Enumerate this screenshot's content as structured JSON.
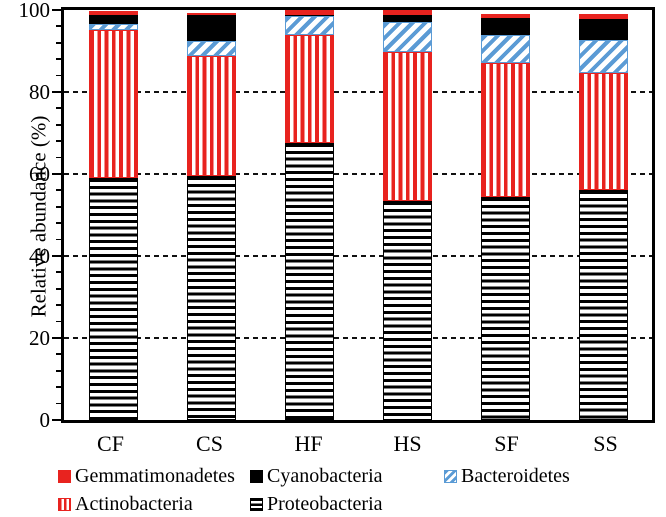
{
  "chart_data": {
    "type": "bar",
    "stacked": true,
    "title": "",
    "xlabel": "",
    "ylabel": "Relative abundance (%)",
    "categories": [
      "CF",
      "CS",
      "HF",
      "HS",
      "SF",
      "SS"
    ],
    "series": [
      {
        "name": "Proteobacteria",
        "pattern": "black-hstripes",
        "values": [
          59.0,
          59.5,
          67.5,
          53.3,
          54.5,
          56.0
        ]
      },
      {
        "name": "Actinobacteria",
        "pattern": "red-vstripes",
        "values": [
          36.2,
          29.4,
          26.3,
          36.4,
          32.7,
          28.7
        ]
      },
      {
        "name": "Bacteroidetes",
        "pattern": "blue-diagonal",
        "values": [
          1.5,
          3.6,
          4.7,
          7.5,
          6.6,
          7.9
        ]
      },
      {
        "name": "Cyanobacteria",
        "pattern": "black-solid",
        "values": [
          2.1,
          6.2,
          0.4,
          1.5,
          4.2,
          5.2
        ]
      },
      {
        "name": "Gemmatimonadetes",
        "pattern": "red-solid",
        "values": [
          1.0,
          0.7,
          1.1,
          1.2,
          1.1,
          1.2
        ]
      }
    ],
    "ylim": [
      0,
      100
    ],
    "yticks": [
      0,
      20,
      40,
      60,
      80,
      100
    ],
    "minor_tick_step": 4,
    "gridlines": {
      "values": [
        20,
        40,
        60,
        80
      ],
      "style": "dashed",
      "color": "#111111"
    },
    "legend": {
      "position": "bottom",
      "rows": [
        [
          "Gemmatimonadetes",
          "Cyanobacteria",
          "Bacteroidetes"
        ],
        [
          "Actinobacteria",
          "Proteobacteria"
        ]
      ]
    },
    "colors": {
      "red": "#e8231f",
      "black": "#000000",
      "blue": "#5b9bd5"
    }
  }
}
